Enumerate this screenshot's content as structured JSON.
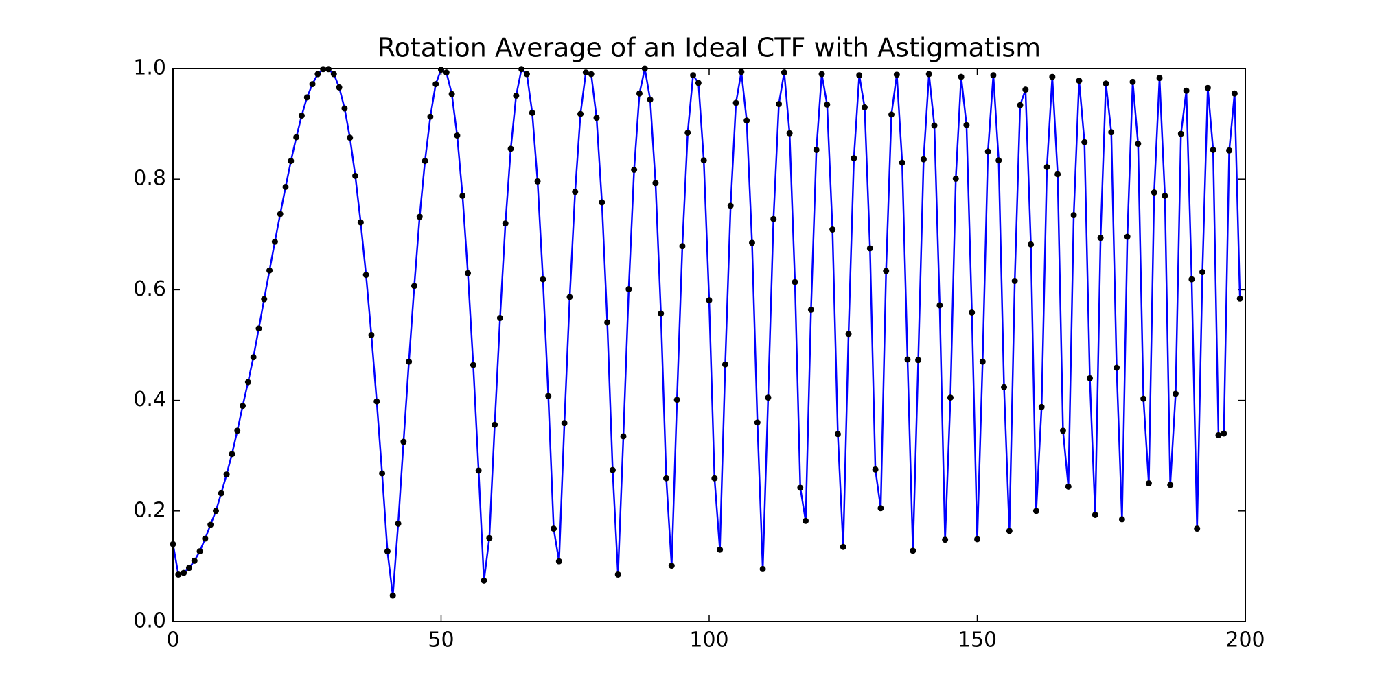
{
  "chart_data": {
    "type": "line",
    "title": "Rotation Average of an Ideal CTF with Astigmatism",
    "x": [
      0,
      1,
      2,
      3,
      4,
      5,
      6,
      7,
      8,
      9,
      10,
      11,
      12,
      13,
      14,
      15,
      16,
      17,
      18,
      19,
      20,
      21,
      22,
      23,
      24,
      25,
      26,
      27,
      28,
      29,
      30,
      31,
      32,
      33,
      34,
      35,
      36,
      37,
      38,
      39,
      40,
      41,
      42,
      43,
      44,
      45,
      46,
      47,
      48,
      49,
      50,
      51,
      52,
      53,
      54,
      55,
      56,
      57,
      58,
      59,
      60,
      61,
      62,
      63,
      64,
      65,
      66,
      67,
      68,
      69,
      70,
      71,
      72,
      73,
      74,
      75,
      76,
      77,
      78,
      79,
      80,
      81,
      82,
      83,
      84,
      85,
      86,
      87,
      88,
      89,
      90,
      91,
      92,
      93,
      94,
      95,
      96,
      97,
      98,
      99,
      100,
      101,
      102,
      103,
      104,
      105,
      106,
      107,
      108,
      109,
      110,
      111,
      112,
      113,
      114,
      115,
      116,
      117,
      118,
      119,
      120,
      121,
      122,
      123,
      124,
      125,
      126,
      127,
      128,
      129,
      130,
      131,
      132,
      133,
      134,
      135,
      136,
      137,
      138,
      139,
      140,
      141,
      142,
      143,
      144,
      145,
      146,
      147,
      148,
      149,
      150,
      151,
      152,
      153,
      154,
      155,
      156,
      157,
      158,
      159,
      160,
      161,
      162,
      163,
      164,
      165,
      166,
      167,
      168,
      169,
      170,
      171,
      172,
      173,
      174,
      175,
      176,
      177,
      178,
      179,
      180,
      181,
      182,
      183,
      184,
      185,
      186,
      187,
      188,
      189,
      190,
      191,
      192,
      193,
      194,
      195,
      196,
      197,
      198,
      199
    ],
    "series": [
      {
        "color": "#0000ff",
        "marker_color": "#000000",
        "values": [
          0.14,
          0.085,
          0.088,
          0.097,
          0.11,
          0.127,
          0.15,
          0.175,
          0.2,
          0.232,
          0.266,
          0.303,
          0.345,
          0.39,
          0.433,
          0.478,
          0.53,
          0.583,
          0.635,
          0.687,
          0.737,
          0.786,
          0.833,
          0.876,
          0.915,
          0.948,
          0.972,
          0.99,
          0.999,
          0.999,
          0.99,
          0.966,
          0.928,
          0.875,
          0.806,
          0.722,
          0.627,
          0.518,
          0.398,
          0.268,
          0.127,
          0.047,
          0.177,
          0.325,
          0.47,
          0.607,
          0.732,
          0.833,
          0.913,
          0.972,
          0.998,
          0.993,
          0.954,
          0.879,
          0.77,
          0.63,
          0.464,
          0.273,
          0.074,
          0.151,
          0.356,
          0.549,
          0.72,
          0.855,
          0.951,
          0.999,
          0.99,
          0.92,
          0.796,
          0.619,
          0.408,
          0.168,
          0.109,
          0.359,
          0.587,
          0.777,
          0.918,
          0.993,
          0.99,
          0.911,
          0.758,
          0.541,
          0.274,
          0.085,
          0.335,
          0.601,
          0.817,
          0.955,
          1.0,
          0.944,
          0.793,
          0.557,
          0.259,
          0.101,
          0.401,
          0.679,
          0.884,
          0.988,
          0.974,
          0.834,
          0.581,
          0.259,
          0.13,
          0.465,
          0.752,
          0.938,
          0.994,
          0.906,
          0.685,
          0.36,
          0.095,
          0.405,
          0.728,
          0.936,
          0.993,
          0.883,
          0.614,
          0.242,
          0.182,
          0.564,
          0.853,
          0.99,
          0.935,
          0.709,
          0.339,
          0.135,
          0.52,
          0.838,
          0.988,
          0.93,
          0.675,
          0.275,
          0.205,
          0.634,
          0.917,
          0.989,
          0.83,
          0.474,
          0.128,
          0.473,
          0.836,
          0.99,
          0.897,
          0.572,
          0.148,
          0.405,
          0.801,
          0.985,
          0.898,
          0.559,
          0.149,
          0.47,
          0.85,
          0.988,
          0.834,
          0.424,
          0.164,
          0.616,
          0.934,
          0.962,
          0.682,
          0.2,
          0.388,
          0.822,
          0.985,
          0.809,
          0.345,
          0.244,
          0.735,
          0.978,
          0.867,
          0.44,
          0.193,
          0.694,
          0.973,
          0.885,
          0.459,
          0.185,
          0.696,
          0.976,
          0.864,
          0.403,
          0.25,
          0.776,
          0.983,
          0.77,
          0.247,
          0.412,
          0.882,
          0.96,
          0.619,
          0.168,
          0.632,
          0.965,
          0.853,
          0.337,
          0.34,
          0.852,
          0.955,
          0.584
        ]
      }
    ],
    "xlim": [
      0,
      200
    ],
    "xticks": [
      0,
      50,
      100,
      150,
      200
    ],
    "ylim": [
      0.0,
      1.0
    ],
    "yticks": [
      {
        "value": 0,
        "label": "0.0"
      },
      0.2,
      0.4,
      0.6,
      0.8,
      {
        "value": 1,
        "label": "1.0"
      }
    ],
    "grid": false
  }
}
